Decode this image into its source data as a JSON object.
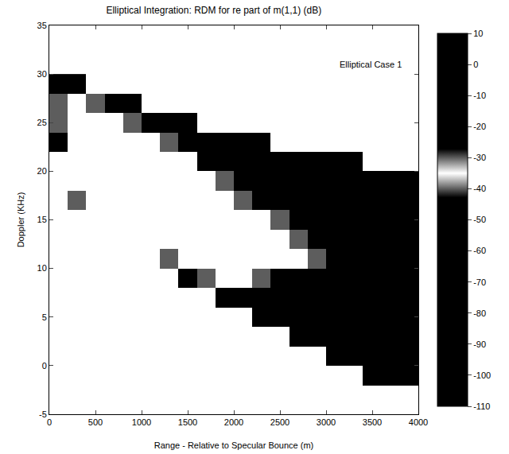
{
  "chart_data": {
    "type": "heatmap",
    "title": "Elliptical Integration: RDM for re part of m(1,1) (dB)",
    "x_label": "Range - Relative to Specular Bounce (m)",
    "y_label": "Doppler (KHz)",
    "annotation": "Elliptical Case 1",
    "grid": false,
    "xlim": [
      0,
      4000
    ],
    "xticks": [
      0,
      500,
      1000,
      1500,
      2000,
      2500,
      3000,
      3500,
      4000
    ],
    "ylim": [
      -5,
      35
    ],
    "yticks": [
      -5,
      0,
      5,
      10,
      15,
      20,
      25,
      30,
      35
    ],
    "colorbar": {
      "range": [
        -110,
        10
      ],
      "ticks": [
        10,
        0,
        -10,
        -20,
        -30,
        -40,
        -50,
        -60,
        -70,
        -80,
        -90,
        -100,
        -110
      ]
    },
    "x": [
      100,
      300,
      500,
      700,
      900,
      1100,
      1300,
      1500,
      1700,
      1900,
      2100,
      2300,
      2500,
      2700,
      2900,
      3100,
      3300,
      3500,
      3700,
      3900
    ],
    "y": [
      -3,
      -1,
      1,
      3,
      5,
      7,
      9,
      11,
      13,
      15,
      17,
      19,
      21,
      23,
      25,
      27,
      29
    ],
    "z": [
      [
        null,
        null,
        null,
        null,
        null,
        null,
        null,
        null,
        null,
        null,
        null,
        null,
        null,
        null,
        null,
        null,
        null,
        null,
        null,
        null
      ],
      [
        null,
        null,
        null,
        null,
        null,
        null,
        null,
        null,
        null,
        null,
        null,
        null,
        null,
        null,
        null,
        null,
        null,
        -70,
        -70,
        -70
      ],
      [
        null,
        null,
        null,
        null,
        null,
        null,
        null,
        null,
        null,
        null,
        null,
        null,
        null,
        null,
        null,
        -70,
        -70,
        -70,
        -70,
        -70
      ],
      [
        null,
        null,
        null,
        null,
        null,
        null,
        null,
        null,
        null,
        null,
        null,
        null,
        null,
        -70,
        -70,
        -70,
        -70,
        -70,
        -70,
        -70
      ],
      [
        null,
        null,
        null,
        null,
        null,
        null,
        null,
        null,
        null,
        null,
        null,
        -70,
        -70,
        -70,
        -70,
        -70,
        -70,
        -70,
        -70,
        -70
      ],
      [
        null,
        null,
        null,
        null,
        null,
        null,
        null,
        null,
        null,
        -70,
        -70,
        -70,
        -70,
        -70,
        -70,
        -70,
        -70,
        -70,
        -70,
        -70
      ],
      [
        null,
        null,
        null,
        null,
        null,
        null,
        null,
        -70,
        -40,
        -35,
        -35,
        -40,
        -70,
        -70,
        -70,
        -70,
        -70,
        -70,
        -70,
        -70
      ],
      [
        null,
        null,
        null,
        null,
        null,
        null,
        -40,
        -35,
        -35,
        -35,
        -35,
        -35,
        -35,
        -35,
        -40,
        -70,
        -70,
        -70,
        -70,
        -70
      ],
      [
        null,
        null,
        null,
        null,
        -35,
        -35,
        -35,
        -35,
        -35,
        -35,
        -35,
        -35,
        -35,
        -40,
        -70,
        -70,
        -70,
        -70,
        -70,
        -70
      ],
      [
        null,
        null,
        -35,
        -35,
        -35,
        -35,
        -35,
        -35,
        -35,
        -35,
        -35,
        -35,
        -40,
        -70,
        -70,
        -70,
        -70,
        -70,
        -70,
        -70
      ],
      [
        null,
        -40,
        -35,
        -35,
        -35,
        -35,
        -35,
        -35,
        -35,
        -35,
        -40,
        -70,
        -70,
        -70,
        -70,
        -70,
        -70,
        -70,
        -70,
        -70
      ],
      [
        null,
        -35,
        -35,
        -35,
        -35,
        -35,
        -35,
        -35,
        -35,
        -40,
        -70,
        -70,
        -70,
        -70,
        -70,
        -70,
        -70,
        -70,
        -70,
        -70
      ],
      [
        null,
        -35,
        -35,
        -35,
        -35,
        -35,
        -35,
        -35,
        -70,
        -70,
        -70,
        -70,
        -70,
        -70,
        -70,
        -70,
        -70,
        null,
        null,
        null
      ],
      [
        -70,
        -35,
        -35,
        -35,
        -35,
        -35,
        -40,
        -70,
        -70,
        -70,
        -70,
        -70,
        null,
        null,
        null,
        null,
        null,
        null,
        null,
        null
      ],
      [
        -40,
        -35,
        -35,
        -35,
        -40,
        -70,
        -70,
        -70,
        null,
        null,
        null,
        null,
        null,
        null,
        null,
        null,
        null,
        null,
        null,
        null
      ],
      [
        -40,
        -35,
        -40,
        -70,
        -70,
        null,
        null,
        null,
        null,
        null,
        null,
        null,
        null,
        null,
        null,
        null,
        null,
        null,
        null,
        null
      ],
      [
        -70,
        -70,
        null,
        null,
        null,
        null,
        null,
        null,
        null,
        null,
        null,
        null,
        null,
        null,
        null,
        null,
        null,
        null,
        null,
        null
      ]
    ]
  }
}
